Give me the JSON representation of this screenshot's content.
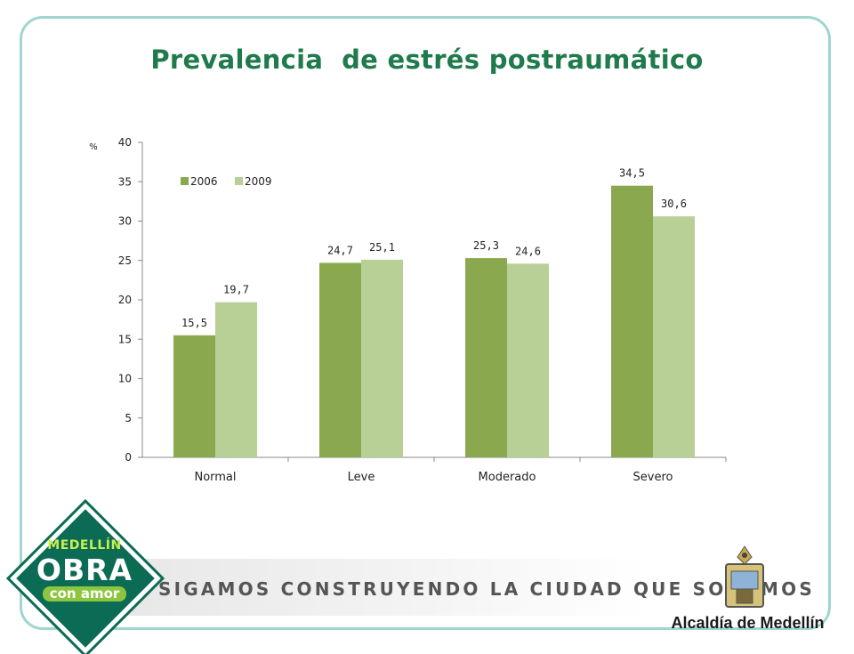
{
  "slide": {
    "title": "Prevalencia  de estrés postraumático",
    "slogan": "SIGAMOS CONSTRUYENDO LA CIUDAD QUE SOÑAMOS",
    "logo": {
      "line1": "MEDELLÍN",
      "line2": "OBRA",
      "line3": "con amor"
    },
    "institution": "Alcaldía de Medellín",
    "colors": {
      "title": "#1f7a4c",
      "frame": "#9fd6cf",
      "logo": "#0b6b55"
    }
  },
  "chart_data": {
    "type": "bar",
    "categories": [
      "Normal",
      "Leve",
      "Moderado",
      "Severo"
    ],
    "series": [
      {
        "name": "2006",
        "values": [
          15.5,
          24.7,
          25.3,
          34.5
        ],
        "labels": [
          "15,5",
          "24,7",
          "25,3",
          "34,5"
        ],
        "color": "#8aa94f"
      },
      {
        "name": "2009",
        "values": [
          19.7,
          25.1,
          24.6,
          30.6
        ],
        "labels": [
          "19,7",
          "25,1",
          "24,6",
          "30,6"
        ],
        "color": "#b8cf95"
      }
    ],
    "ylabel": "%",
    "ylim": [
      0,
      40
    ],
    "yticks": [
      "0",
      "5",
      "10",
      "15",
      "20",
      "25",
      "30",
      "35",
      "40"
    ],
    "grid": false,
    "legend_position": "top-left"
  }
}
